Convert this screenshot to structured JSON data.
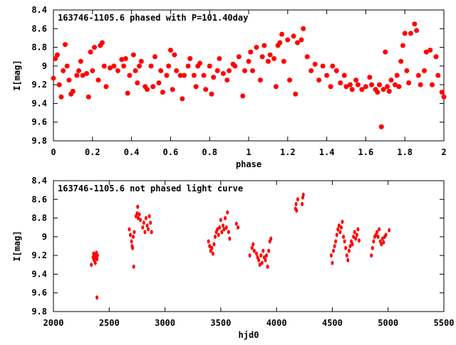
{
  "chart_data": [
    {
      "type": "scatter",
      "title": "163746-1105.6 phased with P=101.40day",
      "xlabel": "phase",
      "ylabel": "I[mag]",
      "xlim": [
        0,
        2
      ],
      "ylim": [
        9.8,
        8.4
      ],
      "y_reversed": true,
      "grid": false,
      "color": "#ff0000",
      "xticks": [
        "0",
        "0.2",
        "0.4",
        "0.6",
        "0.8",
        "1",
        "1.2",
        "1.4",
        "1.6",
        "1.8",
        "2"
      ],
      "xtick_values": [
        0,
        0.2,
        0.4,
        0.6,
        0.8,
        1,
        1.2,
        1.4,
        1.6,
        1.8,
        2
      ],
      "yticks": [
        "8.4",
        "8.6",
        "8.8",
        "9",
        "9.2",
        "9.4",
        "9.6",
        "9.8"
      ],
      "ytick_values": [
        8.4,
        8.6,
        8.8,
        9,
        9.2,
        9.4,
        9.6,
        9.8
      ],
      "points": [
        [
          0.0,
          9.13
        ],
        [
          0.01,
          8.92
        ],
        [
          0.02,
          8.88
        ],
        [
          0.03,
          9.2
        ],
        [
          0.04,
          9.33
        ],
        [
          0.05,
          9.05
        ],
        [
          0.06,
          8.77
        ],
        [
          0.07,
          9.0
        ],
        [
          0.08,
          9.15
        ],
        [
          0.09,
          9.3
        ],
        [
          0.1,
          9.27
        ],
        [
          0.12,
          9.1
        ],
        [
          0.13,
          9.05
        ],
        [
          0.14,
          8.95
        ],
        [
          0.15,
          9.1
        ],
        [
          0.17,
          9.08
        ],
        [
          0.18,
          9.33
        ],
        [
          0.19,
          8.85
        ],
        [
          0.2,
          9.05
        ],
        [
          0.21,
          8.8
        ],
        [
          0.23,
          9.15
        ],
        [
          0.24,
          8.78
        ],
        [
          0.25,
          8.75
        ],
        [
          0.26,
          9.0
        ],
        [
          0.27,
          9.22
        ],
        [
          0.29,
          9.02
        ],
        [
          0.31,
          9.0
        ],
        [
          0.33,
          9.05
        ],
        [
          0.35,
          8.93
        ],
        [
          0.36,
          9.0
        ],
        [
          0.37,
          8.92
        ],
        [
          0.38,
          9.29
        ],
        [
          0.39,
          9.1
        ],
        [
          0.41,
          8.88
        ],
        [
          0.42,
          9.05
        ],
        [
          0.43,
          9.18
        ],
        [
          0.44,
          9.0
        ],
        [
          0.45,
          8.95
        ],
        [
          0.47,
          9.22
        ],
        [
          0.48,
          9.25
        ],
        [
          0.5,
          9.0
        ],
        [
          0.51,
          9.22
        ],
        [
          0.52,
          8.9
        ],
        [
          0.54,
          9.18
        ],
        [
          0.55,
          9.05
        ],
        [
          0.56,
          9.28
        ],
        [
          0.58,
          9.1
        ],
        [
          0.59,
          9.0
        ],
        [
          0.6,
          8.83
        ],
        [
          0.61,
          9.25
        ],
        [
          0.62,
          8.88
        ],
        [
          0.63,
          9.05
        ],
        [
          0.65,
          9.1
        ],
        [
          0.66,
          9.35
        ],
        [
          0.67,
          9.1
        ],
        [
          0.69,
          9.0
        ],
        [
          0.7,
          8.92
        ],
        [
          0.72,
          9.1
        ],
        [
          0.73,
          9.22
        ],
        [
          0.74,
          9.0
        ],
        [
          0.75,
          8.97
        ],
        [
          0.77,
          9.1
        ],
        [
          0.78,
          9.25
        ],
        [
          0.8,
          9.0
        ],
        [
          0.81,
          9.3
        ],
        [
          0.82,
          9.12
        ],
        [
          0.84,
          9.05
        ],
        [
          0.85,
          8.92
        ],
        [
          0.87,
          9.08
        ],
        [
          0.89,
          9.15
        ],
        [
          0.9,
          9.05
        ],
        [
          0.92,
          8.98
        ],
        [
          0.93,
          9.0
        ],
        [
          0.95,
          8.9
        ],
        [
          0.97,
          9.32
        ],
        [
          0.98,
          9.05
        ],
        [
          1.0,
          8.95
        ],
        [
          1.01,
          8.85
        ],
        [
          1.02,
          9.05
        ],
        [
          1.04,
          8.8
        ],
        [
          1.06,
          9.15
        ],
        [
          1.07,
          8.9
        ],
        [
          1.08,
          8.78
        ],
        [
          1.1,
          8.95
        ],
        [
          1.11,
          8.88
        ],
        [
          1.13,
          8.92
        ],
        [
          1.14,
          9.22
        ],
        [
          1.15,
          8.78
        ],
        [
          1.16,
          8.75
        ],
        [
          1.17,
          8.66
        ],
        [
          1.18,
          8.95
        ],
        [
          1.2,
          8.72
        ],
        [
          1.21,
          9.15
        ],
        [
          1.23,
          8.68
        ],
        [
          1.24,
          9.3
        ],
        [
          1.25,
          8.75
        ],
        [
          1.27,
          8.72
        ],
        [
          1.28,
          8.6
        ],
        [
          1.3,
          8.9
        ],
        [
          1.32,
          9.05
        ],
        [
          1.34,
          8.98
        ],
        [
          1.36,
          9.15
        ],
        [
          1.38,
          9.0
        ],
        [
          1.4,
          9.1
        ],
        [
          1.42,
          9.22
        ],
        [
          1.43,
          9.0
        ],
        [
          1.45,
          9.05
        ],
        [
          1.47,
          9.18
        ],
        [
          1.49,
          9.1
        ],
        [
          1.5,
          9.22
        ],
        [
          1.52,
          9.2
        ],
        [
          1.53,
          9.25
        ],
        [
          1.55,
          9.15
        ],
        [
          1.56,
          9.2
        ],
        [
          1.58,
          9.25
        ],
        [
          1.6,
          9.22
        ],
        [
          1.62,
          9.12
        ],
        [
          1.63,
          9.2
        ],
        [
          1.65,
          9.25
        ],
        [
          1.66,
          9.28
        ],
        [
          1.67,
          9.2
        ],
        [
          1.68,
          9.65
        ],
        [
          1.69,
          9.25
        ],
        [
          1.7,
          8.85
        ],
        [
          1.71,
          9.22
        ],
        [
          1.72,
          9.27
        ],
        [
          1.73,
          9.15
        ],
        [
          1.75,
          9.2
        ],
        [
          1.76,
          9.1
        ],
        [
          1.77,
          9.22
        ],
        [
          1.78,
          8.95
        ],
        [
          1.79,
          8.78
        ],
        [
          1.8,
          8.65
        ],
        [
          1.81,
          9.05
        ],
        [
          1.82,
          9.18
        ],
        [
          1.83,
          8.65
        ],
        [
          1.85,
          8.55
        ],
        [
          1.86,
          8.62
        ],
        [
          1.87,
          9.1
        ],
        [
          1.88,
          9.2
        ],
        [
          1.9,
          9.05
        ],
        [
          1.91,
          8.85
        ],
        [
          1.93,
          8.83
        ],
        [
          1.94,
          9.2
        ],
        [
          1.96,
          8.9
        ],
        [
          1.97,
          9.1
        ],
        [
          1.99,
          9.28
        ],
        [
          2.0,
          9.33
        ]
      ]
    },
    {
      "type": "scatter",
      "title": "163746-1105.6 not phased light curve",
      "xlabel": "hjd0",
      "ylabel": "I[mag]",
      "xlim": [
        2000,
        5500
      ],
      "ylim": [
        9.8,
        8.4
      ],
      "y_reversed": true,
      "grid": false,
      "color": "#ff0000",
      "xticks": [
        "2000",
        "2500",
        "3000",
        "3500",
        "4000",
        "4500",
        "5000",
        "5500"
      ],
      "xtick_values": [
        2000,
        2500,
        3000,
        3500,
        4000,
        4500,
        5000,
        5500
      ],
      "yticks": [
        "8.4",
        "8.6",
        "8.8",
        "9",
        "9.2",
        "9.4",
        "9.6",
        "9.8"
      ],
      "ytick_values": [
        8.4,
        8.6,
        8.8,
        9,
        9.2,
        9.4,
        9.6,
        9.8
      ],
      "points": [
        [
          2340,
          9.3
        ],
        [
          2355,
          9.22
        ],
        [
          2360,
          9.18
        ],
        [
          2365,
          9.25
        ],
        [
          2370,
          9.2
        ],
        [
          2375,
          9.28
        ],
        [
          2380,
          9.22
        ],
        [
          2385,
          9.17
        ],
        [
          2390,
          9.24
        ],
        [
          2395,
          9.2
        ],
        [
          2390,
          9.65
        ],
        [
          2680,
          8.92
        ],
        [
          2690,
          8.98
        ],
        [
          2700,
          9.05
        ],
        [
          2705,
          9.1
        ],
        [
          2710,
          9.12
        ],
        [
          2715,
          9.0
        ],
        [
          2720,
          9.32
        ],
        [
          2725,
          8.95
        ],
        [
          2740,
          8.78
        ],
        [
          2750,
          8.75
        ],
        [
          2755,
          8.68
        ],
        [
          2760,
          8.8
        ],
        [
          2770,
          8.76
        ],
        [
          2780,
          8.82
        ],
        [
          2800,
          8.9
        ],
        [
          2810,
          8.85
        ],
        [
          2820,
          8.95
        ],
        [
          2830,
          8.8
        ],
        [
          2840,
          8.88
        ],
        [
          2850,
          8.92
        ],
        [
          2860,
          8.78
        ],
        [
          2870,
          8.85
        ],
        [
          2880,
          8.95
        ],
        [
          3390,
          9.05
        ],
        [
          3400,
          9.1
        ],
        [
          3410,
          9.15
        ],
        [
          3420,
          9.12
        ],
        [
          3430,
          9.18
        ],
        [
          3440,
          9.08
        ],
        [
          3450,
          9.0
        ],
        [
          3460,
          8.95
        ],
        [
          3470,
          8.92
        ],
        [
          3480,
          8.98
        ],
        [
          3490,
          8.9
        ],
        [
          3500,
          8.82
        ],
        [
          3510,
          8.95
        ],
        [
          3520,
          8.88
        ],
        [
          3530,
          8.92
        ],
        [
          3540,
          8.8
        ],
        [
          3550,
          8.9
        ],
        [
          3560,
          8.74
        ],
        [
          3570,
          8.95
        ],
        [
          3580,
          9.02
        ],
        [
          3640,
          8.86
        ],
        [
          3655,
          8.9
        ],
        [
          3760,
          9.2
        ],
        [
          3780,
          9.12
        ],
        [
          3790,
          9.08
        ],
        [
          3800,
          9.15
        ],
        [
          3820,
          9.18
        ],
        [
          3830,
          9.22
        ],
        [
          3840,
          9.25
        ],
        [
          3850,
          9.3
        ],
        [
          3860,
          9.2
        ],
        [
          3870,
          9.28
        ],
        [
          3880,
          9.15
        ],
        [
          3890,
          9.22
        ],
        [
          3900,
          9.25
        ],
        [
          3910,
          9.2
        ],
        [
          3920,
          9.32
        ],
        [
          3930,
          9.15
        ],
        [
          3940,
          9.05
        ],
        [
          3950,
          9.02
        ],
        [
          4170,
          8.7
        ],
        [
          4175,
          8.65
        ],
        [
          4180,
          8.72
        ],
        [
          4190,
          8.6
        ],
        [
          4230,
          8.65
        ],
        [
          4235,
          8.58
        ],
        [
          4240,
          8.55
        ],
        [
          4490,
          9.2
        ],
        [
          4500,
          9.28
        ],
        [
          4510,
          9.15
        ],
        [
          4520,
          9.1
        ],
        [
          4530,
          9.05
        ],
        [
          4540,
          8.98
        ],
        [
          4550,
          8.92
        ],
        [
          4560,
          8.88
        ],
        [
          4570,
          8.95
        ],
        [
          4580,
          8.9
        ],
        [
          4590,
          8.84
        ],
        [
          4600,
          9.0
        ],
        [
          4610,
          9.05
        ],
        [
          4620,
          9.12
        ],
        [
          4630,
          9.2
        ],
        [
          4640,
          9.25
        ],
        [
          4650,
          9.15
        ],
        [
          4660,
          9.1
        ],
        [
          4670,
          9.05
        ],
        [
          4680,
          9.08
        ],
        [
          4690,
          9.0
        ],
        [
          4700,
          8.95
        ],
        [
          4710,
          9.02
        ],
        [
          4720,
          8.98
        ],
        [
          4730,
          8.92
        ],
        [
          4740,
          9.04
        ],
        [
          4850,
          9.2
        ],
        [
          4860,
          9.12
        ],
        [
          4870,
          9.05
        ],
        [
          4880,
          9.0
        ],
        [
          4890,
          8.98
        ],
        [
          4900,
          8.95
        ],
        [
          4910,
          9.0
        ],
        [
          4920,
          8.92
        ],
        [
          4930,
          9.05
        ],
        [
          4940,
          9.08
        ],
        [
          4950,
          9.02
        ],
        [
          4960,
          9.06
        ],
        [
          4970,
          9.0
        ],
        [
          4980,
          8.98
        ],
        [
          5010,
          8.93
        ]
      ]
    }
  ]
}
